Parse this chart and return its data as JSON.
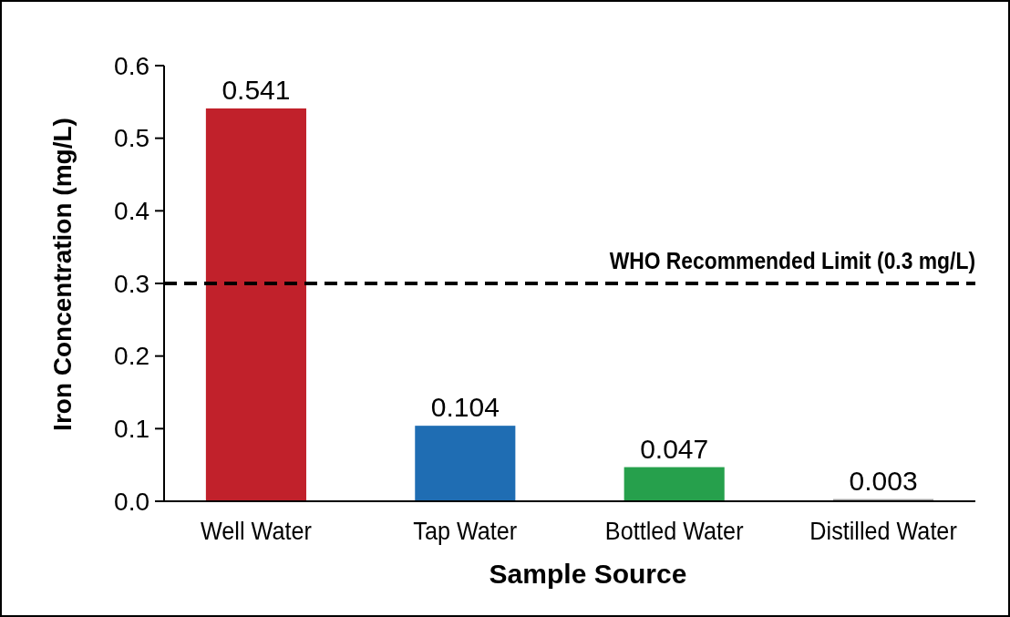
{
  "chart_data": {
    "type": "bar",
    "xlabel": "Sample Source",
    "ylabel": "Iron Concentration (mg/L)",
    "categories": [
      "Well Water",
      "Tap Water",
      "Bottled Water",
      "Distilled Water"
    ],
    "values": [
      0.541,
      0.104,
      0.047,
      0.003
    ],
    "colors": [
      "#c1212b",
      "#1f6db3",
      "#26a04c",
      "#9a9a9a"
    ],
    "ylim": [
      0,
      0.6
    ],
    "yticks": [
      {
        "value": 0,
        "label": "0.0"
      },
      0.1,
      0.2,
      0.3,
      0.4,
      0.5,
      0.6
    ],
    "data_labels": true,
    "ref_lines": [
      {
        "axis": "y",
        "value": 0.3,
        "label": "WHO Recommended Limit (0.3 mg/L)",
        "color": "#000000",
        "line_style": "dashed"
      }
    ]
  }
}
